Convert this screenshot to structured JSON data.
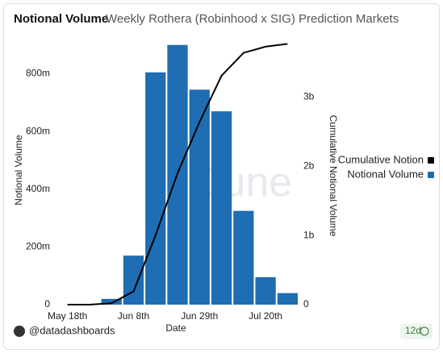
{
  "chart_data": {
    "type": "bar_line",
    "title": "Notional Volume",
    "subtitle": "Weekly Rothera (Robinhood x SIG) Prediction Markets",
    "x_label": "Date",
    "y_label": "Notional Volume",
    "y2_label": "Cumulative Notional Volume",
    "categories": [
      "May 18th",
      null,
      null,
      "Jun 8th",
      null,
      null,
      "Jun 29th",
      null,
      null,
      "Jul 20th",
      null
    ],
    "series": [
      {
        "name": "Cumulative Notion",
        "color": "#000000",
        "type": "line",
        "axis": "y2",
        "values": [
          0,
          0,
          20000000,
          190000000,
          1000000000,
          1900000000,
          2640000000,
          3310000000,
          3640000000,
          3730000000,
          3770000000
        ]
      },
      {
        "name": "Notional Volume",
        "color": "#1f6db3",
        "type": "bar",
        "values": [
          0,
          0,
          20000000,
          170000000,
          805000000,
          900000000,
          745000000,
          670000000,
          325000000,
          95000000,
          40000000
        ]
      }
    ],
    "ylim": [
      0,
      930000000
    ],
    "yticks": [
      0,
      {
        "value": 200000000,
        "label": "200m"
      },
      {
        "value": 400000000,
        "label": "400m"
      },
      {
        "value": 600000000,
        "label": "600m"
      },
      {
        "value": 800000000,
        "label": "800m"
      }
    ],
    "y2lim": [
      0,
      3880000000
    ],
    "y2ticks": [
      0,
      {
        "value": 1000000000,
        "label": "1b"
      },
      {
        "value": 2000000000,
        "label": "2b"
      },
      {
        "value": 3000000000,
        "label": "3b"
      }
    ],
    "grid": false,
    "legend": "right"
  },
  "watermark": "Dune",
  "footer": {
    "author": "@datadashboards",
    "age": "12d"
  }
}
